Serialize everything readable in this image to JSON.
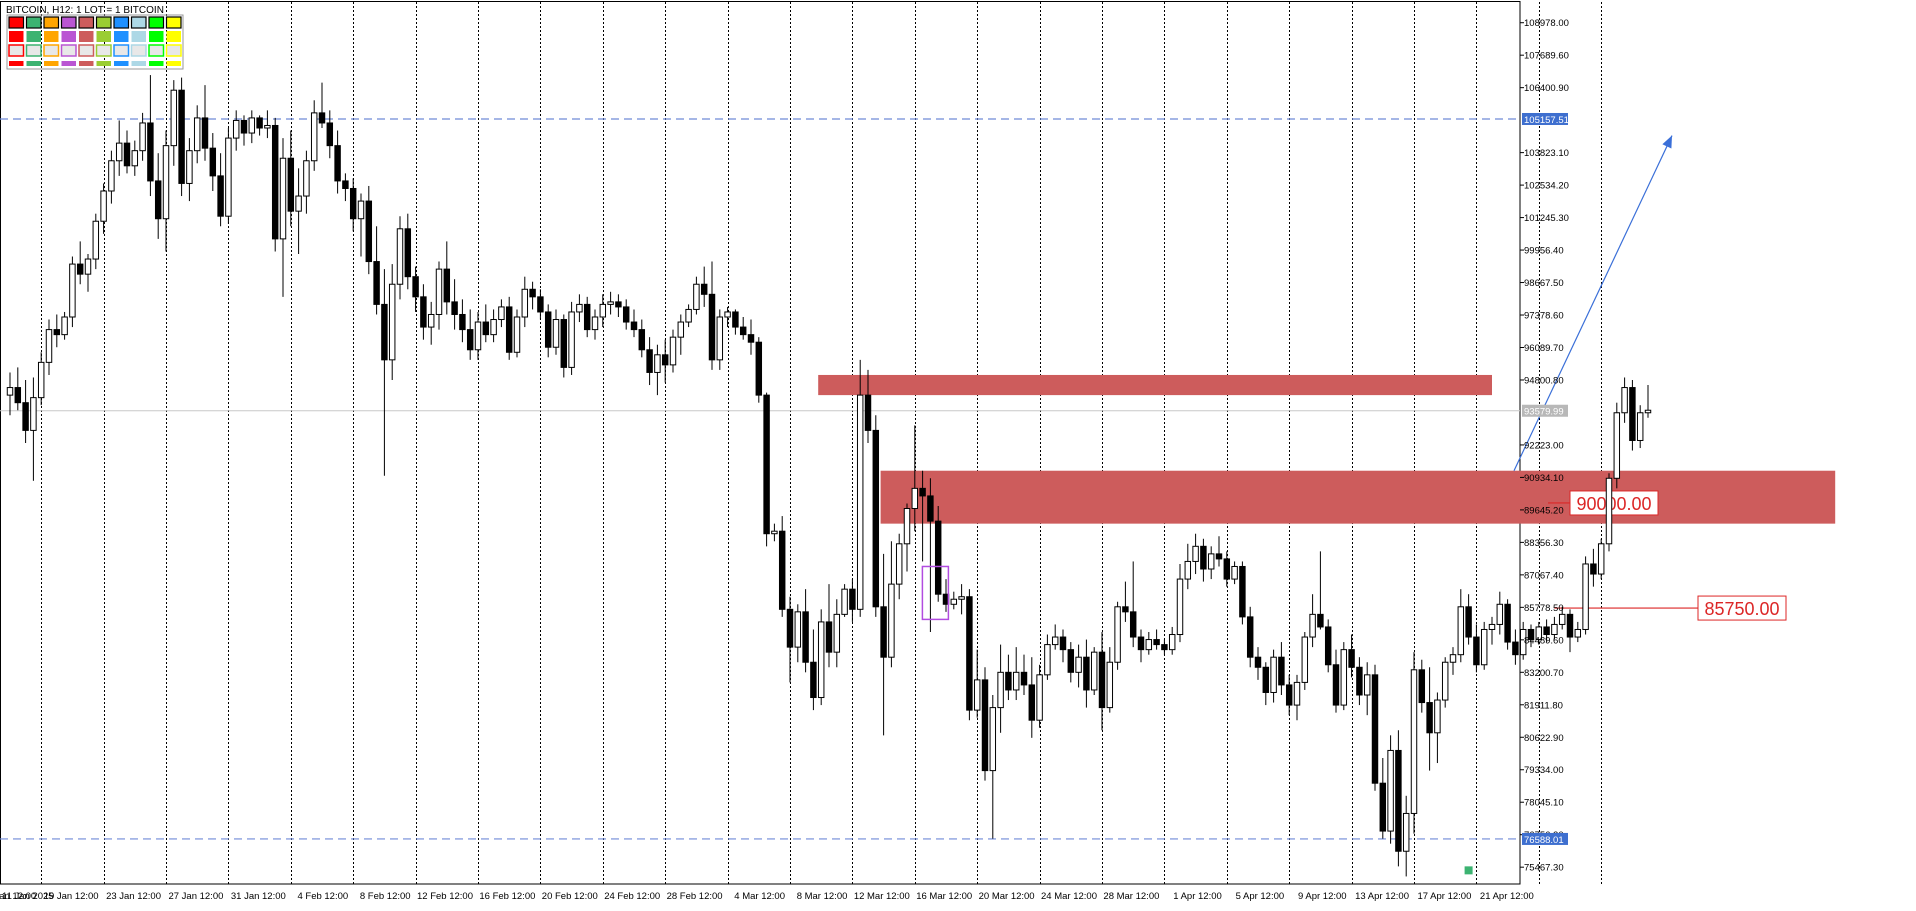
{
  "header": {
    "title": "BITCOIN, H12:  1 LOT = 1 BITCOIN"
  },
  "palette": {
    "rows": [
      [
        "#ff0000",
        "#3cb371",
        "#ffa500",
        "#ba55d3",
        "#cd5c5c",
        "#9acd32",
        "#1e90ff",
        "#add8e6",
        "#00ff00",
        "#ffff00"
      ],
      [
        "#ff0000",
        "#3cb371",
        "#ffa500",
        "#ba55d3",
        "#cd5c5c",
        "#9acd32",
        "#1e90ff",
        "#add8e6",
        "#00ff00",
        "#ffff00"
      ],
      [
        "#ff0000",
        "#3cb371",
        "#ffa500",
        "#ba55d3",
        "#cd5c5c",
        "#9acd32",
        "#1e90ff",
        "#add8e6",
        "#00ff00",
        "#ffff00"
      ],
      [
        "#ff0000",
        "#3cb371",
        "#ffa500",
        "#ba55d3",
        "#cd5c5c",
        "#9acd32",
        "#1e90ff",
        "#add8e6",
        "#00ff00",
        "#ffff00"
      ]
    ],
    "row_styles": [
      "filled-box",
      "filled",
      "outline",
      "strip"
    ]
  },
  "colors": {
    "zone": "#cd5c5c",
    "level_line": "#dc2626",
    "dashed": "#6f8ad8",
    "trend": "#3a6fd8",
    "tag_blue": "#3e6fcf",
    "tag_gray": "#b8b8b8",
    "grid": "#000000"
  },
  "chart_data": {
    "type": "candlestick",
    "symbol": "BITCOIN",
    "timeframe": "H12",
    "y_ticks": [
      "108978.00",
      "107689.60",
      "106400.90",
      "105157.51",
      "103823.10",
      "102534.20",
      "101245.30",
      "99956.40",
      "98667.50",
      "97378.60",
      "96089.70",
      "94800.80",
      "93579.99",
      "92223.00",
      "90934.10",
      "89645.20",
      "88356.30",
      "87067.40",
      "85778.50",
      "84489.60",
      "83200.70",
      "81911.80",
      "80622.90",
      "79334.00",
      "78045.10",
      "76756.20",
      "76588.01",
      "75467.30"
    ],
    "x_labels": [
      "11 Jan 2025",
      "15 Jan 12:00",
      "19 Jan 12:00",
      "23 Jan 12:00",
      "27 Jan 12:00",
      "31 Jan 12:00",
      "4 Feb 12:00",
      "8 Feb 12:00",
      "12 Feb 12:00",
      "16 Feb 12:00",
      "20 Feb 12:00",
      "24 Feb 12:00",
      "28 Feb 12:00",
      "4 Mar 12:00",
      "8 Mar 12:00",
      "12 Mar 12:00",
      "16 Mar 12:00",
      "20 Mar 12:00",
      "24 Mar 12:00",
      "28 Mar 12:00",
      "1 Apr 12:00",
      "5 Apr 12:00",
      "9 Apr 12:00",
      "13 Apr 12:00",
      "17 Apr 12:00",
      "21 Apr 12:00"
    ],
    "y_range": [
      74800,
      109800
    ],
    "current_price": 93579.99,
    "levels": {
      "upper_dashed": 105157.51,
      "lower_dashed": 76588.01,
      "level_85750": 85750.0,
      "level_90000": 90000.0
    },
    "level_labels": {
      "l85750": "85750.00",
      "l90000": "90000.00"
    },
    "zones": [
      {
        "name": "upper-supply-zone",
        "from": "28 Feb 12:00",
        "to": "25 Mar",
        "low": 94200,
        "high": 95000
      },
      {
        "name": "lower-supply-zone",
        "from": "4 Mar",
        "to": "14 Apr",
        "low": 89100,
        "high": 91200
      }
    ],
    "trend_arrow": {
      "from_price": 91200,
      "to_price": 104500,
      "from_date": "14 Apr",
      "to_date": "25 Apr"
    },
    "grid": "vertical-dotted",
    "candles_ohlc": [
      [
        94200,
        95100,
        93400,
        94500
      ],
      [
        94500,
        95300,
        93600,
        93900
      ],
      [
        93900,
        94800,
        92300,
        92800
      ],
      [
        92800,
        94900,
        90800,
        94100
      ],
      [
        94100,
        95900,
        93800,
        95500
      ],
      [
        95500,
        97200,
        95000,
        96800
      ],
      [
        96800,
        97400,
        96100,
        96600
      ],
      [
        96600,
        97500,
        96400,
        97300
      ],
      [
        97300,
        99700,
        96900,
        99400
      ],
      [
        99400,
        100300,
        98600,
        99000
      ],
      [
        99000,
        99800,
        98300,
        99600
      ],
      [
        99600,
        101400,
        99200,
        101100
      ],
      [
        101100,
        102600,
        100600,
        102300
      ],
      [
        102300,
        103900,
        101800,
        103500
      ],
      [
        103500,
        105100,
        102900,
        104200
      ],
      [
        104200,
        104700,
        103000,
        103300
      ],
      [
        103300,
        104300,
        102900,
        103900
      ],
      [
        103900,
        105400,
        103500,
        105000
      ],
      [
        105000,
        106900,
        102100,
        102700
      ],
      [
        102700,
        103800,
        100400,
        101200
      ],
      [
        101200,
        104700,
        99900,
        104100
      ],
      [
        104100,
        106700,
        103300,
        106300
      ],
      [
        106300,
        106800,
        102100,
        102600
      ],
      [
        102600,
        104400,
        101900,
        103900
      ],
      [
        103900,
        105700,
        103400,
        105200
      ],
      [
        105200,
        106500,
        103500,
        104000
      ],
      [
        104000,
        104600,
        102300,
        102900
      ],
      [
        102900,
        103800,
        100900,
        101300
      ],
      [
        101300,
        104800,
        101000,
        104400
      ],
      [
        104400,
        105500,
        103900,
        105100
      ],
      [
        105100,
        105300,
        104100,
        104600
      ],
      [
        104600,
        105500,
        104200,
        105200
      ],
      [
        105200,
        105300,
        104500,
        104800
      ],
      [
        104800,
        105500,
        104400,
        104900
      ],
      [
        104900,
        105200,
        99900,
        100400
      ],
      [
        100400,
        104400,
        98100,
        103600
      ],
      [
        103600,
        104700,
        100900,
        101500
      ],
      [
        101500,
        103200,
        99800,
        102100
      ],
      [
        102100,
        103900,
        101400,
        103500
      ],
      [
        103500,
        105900,
        103100,
        105400
      ],
      [
        105400,
        106600,
        104800,
        105000
      ],
      [
        105000,
        105500,
        103600,
        104100
      ],
      [
        104100,
        104700,
        102200,
        102700
      ],
      [
        102700,
        103000,
        101900,
        102400
      ],
      [
        102400,
        102800,
        100700,
        101200
      ],
      [
        101200,
        102200,
        99700,
        101900
      ],
      [
        101900,
        102500,
        99000,
        99500
      ],
      [
        99500,
        100900,
        97400,
        97800
      ],
      [
        97800,
        99200,
        91000,
        95600
      ],
      [
        95600,
        99400,
        94800,
        98600
      ],
      [
        98600,
        101300,
        98000,
        100800
      ],
      [
        100800,
        101400,
        98400,
        98900
      ],
      [
        98900,
        99300,
        97500,
        98100
      ],
      [
        98100,
        98600,
        96400,
        96900
      ],
      [
        96900,
        97900,
        96200,
        97400
      ],
      [
        97400,
        99500,
        96800,
        99200
      ],
      [
        99200,
        100300,
        97400,
        97900
      ],
      [
        97900,
        98800,
        96800,
        97400
      ],
      [
        97400,
        98000,
        96300,
        96800
      ],
      [
        96800,
        97600,
        95600,
        96000
      ],
      [
        96000,
        97500,
        95600,
        97100
      ],
      [
        97100,
        97800,
        96300,
        96600
      ],
      [
        96600,
        97600,
        96300,
        97200
      ],
      [
        97200,
        98000,
        96900,
        97700
      ],
      [
        97700,
        98100,
        95600,
        95900
      ],
      [
        95900,
        97600,
        95700,
        97300
      ],
      [
        97300,
        98900,
        96900,
        98400
      ],
      [
        98400,
        98700,
        97600,
        98100
      ],
      [
        98100,
        98400,
        97200,
        97500
      ],
      [
        97500,
        97800,
        95700,
        96100
      ],
      [
        96100,
        97600,
        95800,
        97200
      ],
      [
        97200,
        97400,
        94900,
        95300
      ],
      [
        95300,
        97900,
        95000,
        97500
      ],
      [
        97500,
        98200,
        97100,
        97800
      ],
      [
        97800,
        98100,
        96500,
        96800
      ],
      [
        96800,
        97600,
        96400,
        97300
      ],
      [
        97300,
        98200,
        96900,
        97800
      ],
      [
        97800,
        98300,
        97400,
        97900
      ],
      [
        97900,
        98200,
        97300,
        97700
      ],
      [
        97700,
        98000,
        96800,
        97100
      ],
      [
        97100,
        97600,
        96500,
        96800
      ],
      [
        96800,
        97200,
        95700,
        96000
      ],
      [
        96000,
        96500,
        94600,
        95100
      ],
      [
        95100,
        96200,
        94200,
        95800
      ],
      [
        95800,
        96400,
        94700,
        95400
      ],
      [
        95400,
        96800,
        95100,
        96500
      ],
      [
        96500,
        97400,
        95800,
        97100
      ],
      [
        97100,
        97800,
        96900,
        97600
      ],
      [
        97600,
        98900,
        97400,
        98600
      ],
      [
        98600,
        99300,
        97700,
        98200
      ],
      [
        98200,
        99500,
        95200,
        95600
      ],
      [
        95600,
        97600,
        95200,
        97300
      ],
      [
        97300,
        97700,
        96900,
        97500
      ],
      [
        97500,
        97600,
        96600,
        96900
      ],
      [
        96900,
        97300,
        96400,
        96600
      ],
      [
        96600,
        97200,
        95800,
        96300
      ],
      [
        96300,
        96500,
        93900,
        94200
      ],
      [
        94200,
        94300,
        88200,
        88700
      ],
      [
        88700,
        89100,
        88400,
        88800
      ],
      [
        88800,
        89400,
        85400,
        85700
      ],
      [
        85700,
        86200,
        82800,
        84200
      ],
      [
        84200,
        85900,
        83600,
        85600
      ],
      [
        85600,
        86500,
        83200,
        83600
      ],
      [
        83600,
        84900,
        81700,
        82200
      ],
      [
        82200,
        85700,
        81900,
        85200
      ],
      [
        85200,
        86700,
        83400,
        84000
      ],
      [
        84000,
        86100,
        83400,
        85500
      ],
      [
        85500,
        86700,
        85400,
        86500
      ],
      [
        86500,
        86900,
        85200,
        85700
      ],
      [
        85700,
        95600,
        85400,
        94200
      ],
      [
        94200,
        95200,
        92300,
        92800
      ],
      [
        92800,
        93400,
        85400,
        85800
      ],
      [
        85800,
        87900,
        80700,
        83800
      ],
      [
        83800,
        88400,
        83400,
        86700
      ],
      [
        86700,
        88700,
        86100,
        88300
      ],
      [
        88300,
        89900,
        87200,
        89700
      ],
      [
        89700,
        93000,
        88800,
        90500
      ],
      [
        90500,
        91200,
        87600,
        90200
      ],
      [
        90200,
        90900,
        84800,
        89200
      ],
      [
        89200,
        89800,
        86000,
        86300
      ],
      [
        86300,
        86900,
        85600,
        85900
      ],
      [
        85900,
        86400,
        85700,
        86100
      ],
      [
        86100,
        86700,
        85500,
        86200
      ],
      [
        86200,
        86500,
        81300,
        81700
      ],
      [
        81700,
        84100,
        81400,
        82900
      ],
      [
        82900,
        83400,
        78900,
        79300
      ],
      [
        79300,
        82300,
        76600,
        81800
      ],
      [
        81800,
        84300,
        80800,
        83200
      ],
      [
        83200,
        83900,
        82100,
        82500
      ],
      [
        82500,
        84200,
        82100,
        83200
      ],
      [
        83200,
        83900,
        82300,
        82700
      ],
      [
        82700,
        83800,
        80600,
        81300
      ],
      [
        81300,
        83500,
        81000,
        83100
      ],
      [
        83100,
        84700,
        82900,
        84300
      ],
      [
        84300,
        85100,
        84100,
        84600
      ],
      [
        84600,
        84900,
        83600,
        84100
      ],
      [
        84100,
        84400,
        82800,
        83200
      ],
      [
        83200,
        84300,
        82600,
        83800
      ],
      [
        83800,
        84500,
        81800,
        82500
      ],
      [
        82500,
        84200,
        82300,
        84000
      ],
      [
        84000,
        84800,
        80900,
        81800
      ],
      [
        81800,
        84200,
        81600,
        83600
      ],
      [
        83600,
        86000,
        83300,
        85800
      ],
      [
        85800,
        86800,
        85200,
        85600
      ],
      [
        85600,
        87600,
        84200,
        84600
      ],
      [
        84600,
        84900,
        83600,
        84100
      ],
      [
        84100,
        84800,
        83900,
        84500
      ],
      [
        84500,
        84900,
        84100,
        84300
      ],
      [
        84300,
        84500,
        83900,
        84100
      ],
      [
        84100,
        85000,
        83900,
        84700
      ],
      [
        84700,
        87500,
        84400,
        86900
      ],
      [
        86900,
        88300,
        86500,
        87600
      ],
      [
        87600,
        88700,
        87100,
        88200
      ],
      [
        88200,
        88500,
        86800,
        87300
      ],
      [
        87300,
        88200,
        86900,
        87900
      ],
      [
        87900,
        88600,
        87400,
        87700
      ],
      [
        87700,
        88000,
        86600,
        86900
      ],
      [
        86900,
        87600,
        86700,
        87400
      ],
      [
        87400,
        87600,
        85100,
        85400
      ],
      [
        85400,
        85800,
        83400,
        83800
      ],
      [
        83800,
        84200,
        82900,
        83400
      ],
      [
        83400,
        83600,
        81900,
        82400
      ],
      [
        82400,
        84100,
        82000,
        83800
      ],
      [
        83800,
        84400,
        82300,
        82700
      ],
      [
        82700,
        83100,
        81500,
        81900
      ],
      [
        81900,
        83100,
        81300,
        82800
      ],
      [
        82800,
        84800,
        82500,
        84600
      ],
      [
        84600,
        86300,
        84200,
        85500
      ],
      [
        85500,
        88000,
        84900,
        85000
      ],
      [
        85000,
        85300,
        83200,
        83500
      ],
      [
        83500,
        84100,
        81600,
        81900
      ],
      [
        81900,
        84400,
        81700,
        84100
      ],
      [
        84100,
        84700,
        83000,
        83400
      ],
      [
        83400,
        83800,
        81900,
        82300
      ],
      [
        82300,
        83600,
        81500,
        83100
      ],
      [
        83100,
        83500,
        78500,
        78800
      ],
      [
        78800,
        79800,
        76600,
        76900
      ],
      [
        76900,
        80700,
        76400,
        80100
      ],
      [
        80100,
        80900,
        75500,
        76100
      ],
      [
        76100,
        78300,
        75100,
        77600
      ],
      [
        77600,
        84000,
        76800,
        83300
      ],
      [
        83300,
        83700,
        81600,
        82000
      ],
      [
        82000,
        83400,
        79300,
        80800
      ],
      [
        80800,
        82400,
        79600,
        82100
      ],
      [
        82100,
        83800,
        81800,
        83600
      ],
      [
        83600,
        84200,
        83100,
        83900
      ],
      [
        83900,
        86500,
        83600,
        85800
      ],
      [
        85800,
        86300,
        84300,
        84600
      ],
      [
        84600,
        85100,
        83200,
        83500
      ],
      [
        83500,
        85200,
        83300,
        84900
      ],
      [
        84900,
        85400,
        84300,
        85100
      ],
      [
        85100,
        86400,
        84700,
        85900
      ],
      [
        85900,
        86100,
        84100,
        84400
      ],
      [
        84400,
        84900,
        83500,
        83900
      ],
      [
        83900,
        85200,
        83700,
        84900
      ],
      [
        84900,
        85100,
        84200,
        84500
      ],
      [
        84500,
        85200,
        84300,
        85000
      ],
      [
        85000,
        85300,
        84400,
        84700
      ],
      [
        84700,
        85400,
        84500,
        85100
      ],
      [
        85100,
        85800,
        84900,
        85500
      ],
      [
        85500,
        85700,
        84000,
        84600
      ],
      [
        84600,
        85200,
        84400,
        84900
      ],
      [
        84900,
        87800,
        84700,
        87500
      ],
      [
        87500,
        88100,
        86600,
        87100
      ],
      [
        87100,
        88500,
        86900,
        88300
      ],
      [
        88300,
        91100,
        88000,
        90900
      ],
      [
        90900,
        93900,
        90500,
        93500
      ],
      [
        93500,
        94900,
        93100,
        94500
      ],
      [
        94500,
        94800,
        92000,
        92400
      ],
      [
        92400,
        93800,
        92100,
        93500
      ],
      [
        93500,
        94600,
        93300,
        93600
      ]
    ]
  }
}
